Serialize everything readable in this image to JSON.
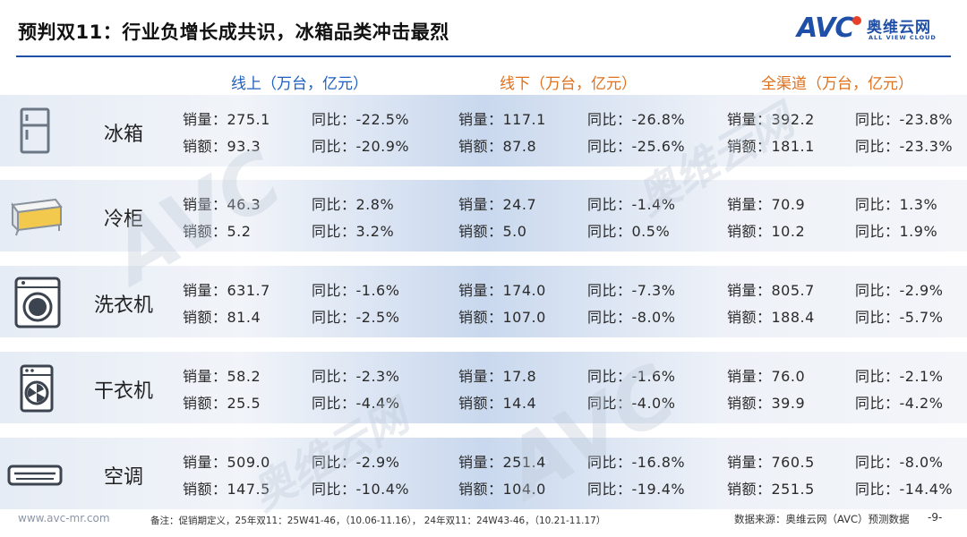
{
  "title": "预判双11：行业负增长成共识，冰箱品类冲击最烈",
  "logo": {
    "mark": "AVC",
    "cn": "奥维云网",
    "en": "ALL VIEW CLOUD",
    "brand_color": "#1f4fa6"
  },
  "columns": {
    "online": "线上（万台，亿元）",
    "offline": "线下（万台，亿元）",
    "all": "全渠道（万台，亿元）"
  },
  "rows": [
    {
      "name": "冰箱",
      "icon": "fridge-icon",
      "online": {
        "vol": "销量：275.1",
        "vol_yoy": "同比：-22.5%",
        "amt": "销额：93.3",
        "amt_yoy": "同比：-20.9%"
      },
      "offline": {
        "vol": "销量：117.1",
        "vol_yoy": "同比：-26.8%",
        "amt": "销额：87.8",
        "amt_yoy": "同比：-25.6%"
      },
      "all": {
        "vol": "销量：392.2",
        "vol_yoy": "同比：-23.8%",
        "amt": "销额：181.1",
        "amt_yoy": "同比：-23.3%"
      }
    },
    {
      "name": "冷柜",
      "icon": "freezer-icon",
      "online": {
        "vol": "销量：46.3",
        "vol_yoy": "同比：2.8%",
        "amt": "销额：5.2",
        "amt_yoy": "同比：3.2%"
      },
      "offline": {
        "vol": "销量：24.7",
        "vol_yoy": "同比：-1.4%",
        "amt": "销额：5.0",
        "amt_yoy": "同比：0.5%"
      },
      "all": {
        "vol": "销量：70.9",
        "vol_yoy": "同比：1.3%",
        "amt": "销额：10.2",
        "amt_yoy": "同比：1.9%"
      }
    },
    {
      "name": "洗衣机",
      "icon": "washing-machine-icon",
      "online": {
        "vol": "销量：631.7",
        "vol_yoy": "同比：-1.6%",
        "amt": "销额：81.4",
        "amt_yoy": "同比：-2.5%"
      },
      "offline": {
        "vol": "销量：174.0",
        "vol_yoy": "同比：-7.3%",
        "amt": "销额：107.0",
        "amt_yoy": "同比：-8.0%"
      },
      "all": {
        "vol": "销量：805.7",
        "vol_yoy": "同比：-2.9%",
        "amt": "销额：188.4",
        "amt_yoy": "同比：-5.7%"
      }
    },
    {
      "name": "干衣机",
      "icon": "dryer-icon",
      "online": {
        "vol": "销量：58.2",
        "vol_yoy": "同比：-2.3%",
        "amt": "销额：25.5",
        "amt_yoy": "同比：-4.4%"
      },
      "offline": {
        "vol": "销量：17.8",
        "vol_yoy": "同比：-1.6%",
        "amt": "销额：14.4",
        "amt_yoy": "同比：-4.0%"
      },
      "all": {
        "vol": "销量：76.0",
        "vol_yoy": "同比：-2.1%",
        "amt": "销额：39.9",
        "amt_yoy": "同比：-4.2%"
      }
    },
    {
      "name": "空调",
      "icon": "air-conditioner-icon",
      "online": {
        "vol": "销量：509.0",
        "vol_yoy": "同比：-2.9%",
        "amt": "销额：147.5",
        "amt_yoy": "同比：-10.4%"
      },
      "offline": {
        "vol": "销量：251.4",
        "vol_yoy": "同比：-16.8%",
        "amt": "销额：104.0",
        "amt_yoy": "同比：-19.4%"
      },
      "all": {
        "vol": "销量：760.5",
        "vol_yoy": "同比：-8.0%",
        "amt": "销额：251.5",
        "amt_yoy": "同比：-14.4%"
      }
    }
  ],
  "footer": {
    "url": "www.avc-mr.com",
    "note": "备注：促销期定义，25年双11：25W41-46，（10.06-11.16）， 24年双11：24W43-46，（10.21-11.17）",
    "source": "数据来源：奥维云网（AVC）预测数据",
    "page": "-9-"
  },
  "colors": {
    "online_head": "#1f5fbf",
    "offline_head": "#e0701c",
    "all_head": "#e0701c",
    "rule": "#1f4fa6"
  }
}
